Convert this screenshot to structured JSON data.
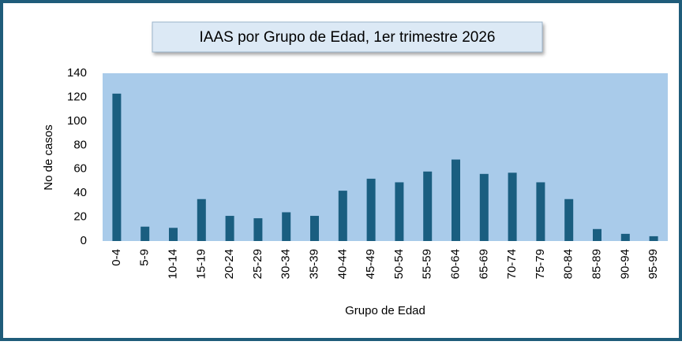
{
  "chart_data": {
    "type": "bar",
    "title": "IAAS por Grupo de Edad, 1er trimestre 2026",
    "x_label": "Grupo de Edad",
    "y_label": "No de casos",
    "categories": [
      "0-4",
      "5-9",
      "10-14",
      "15-19",
      "20-24",
      "25-29",
      "30-34",
      "35-39",
      "40-44",
      "45-49",
      "50-54",
      "55-59",
      "60-64",
      "65-69",
      "70-74",
      "75-79",
      "80-84",
      "85-89",
      "90-94",
      "95-99"
    ],
    "values": [
      123,
      12,
      11,
      35,
      21,
      19,
      24,
      21,
      42,
      52,
      49,
      58,
      68,
      56,
      57,
      49,
      35,
      10,
      6,
      4
    ],
    "color": "#1a5e80",
    "ylim": [
      0,
      140
    ],
    "yticks": [
      0,
      20,
      40,
      60,
      80,
      100,
      120,
      140
    ],
    "grid": false
  }
}
